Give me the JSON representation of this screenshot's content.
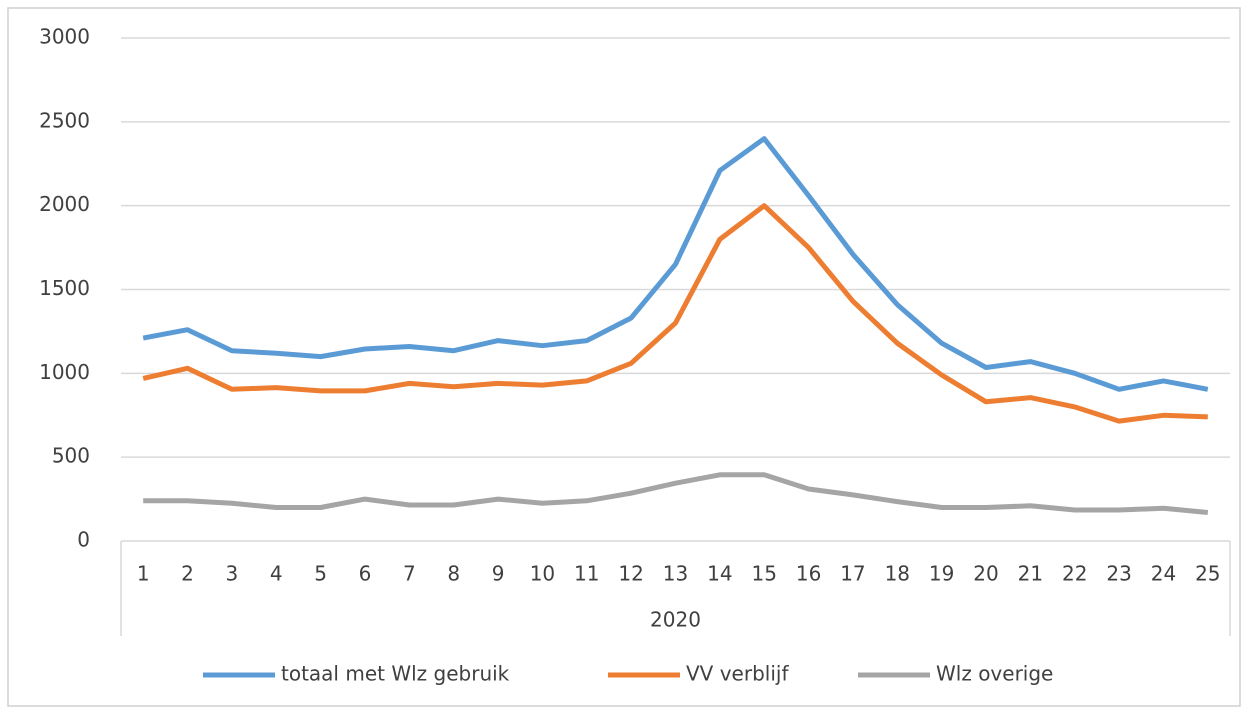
{
  "chart_data": {
    "type": "line",
    "categories": [
      "1",
      "2",
      "3",
      "4",
      "5",
      "6",
      "7",
      "8",
      "9",
      "10",
      "11",
      "12",
      "13",
      "14",
      "15",
      "16",
      "17",
      "18",
      "19",
      "20",
      "21",
      "22",
      "23",
      "24",
      "25"
    ],
    "x_group_label": "2020",
    "series": [
      {
        "name": "totaal met Wlz gebruik",
        "color": "#5b9bd5",
        "values": [
          1210,
          1260,
          1135,
          1120,
          1100,
          1145,
          1160,
          1135,
          1195,
          1165,
          1195,
          1330,
          1650,
          2210,
          2400,
          2060,
          1710,
          1410,
          1180,
          1035,
          1070,
          1000,
          905,
          955,
          905
        ]
      },
      {
        "name": "VV verblijf",
        "color": "#ed7d31",
        "values": [
          970,
          1030,
          905,
          915,
          895,
          895,
          940,
          920,
          940,
          930,
          955,
          1060,
          1300,
          1800,
          2000,
          1750,
          1430,
          1180,
          990,
          830,
          855,
          800,
          715,
          750,
          740
        ]
      },
      {
        "name": "Wlz overige",
        "color": "#a5a5a5",
        "values": [
          240,
          240,
          225,
          200,
          200,
          250,
          215,
          215,
          250,
          225,
          240,
          285,
          345,
          395,
          395,
          310,
          275,
          235,
          200,
          200,
          210,
          185,
          185,
          195,
          170
        ]
      }
    ],
    "ylim": [
      0,
      3000
    ],
    "yticks": [
      0,
      500,
      1000,
      1500,
      2000,
      2500,
      3000
    ],
    "grid": true,
    "legend": "bottom"
  }
}
